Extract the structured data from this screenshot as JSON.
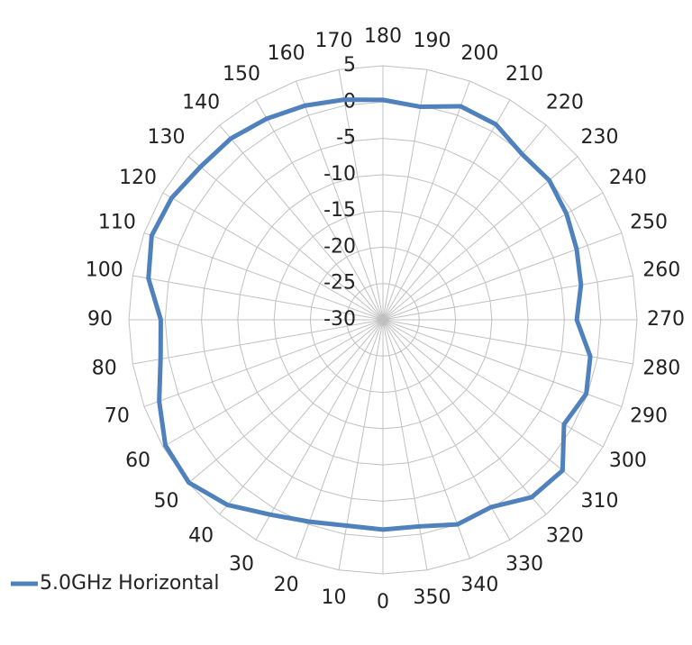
{
  "chart_data": {
    "type": "radar",
    "categories": [
      "0",
      "10",
      "20",
      "30",
      "40",
      "50",
      "60",
      "70",
      "80",
      "90",
      "100",
      "110",
      "120",
      "130",
      "140",
      "150",
      "160",
      "170",
      "180",
      "190",
      "200",
      "210",
      "220",
      "230",
      "240",
      "250",
      "260",
      "270",
      "280",
      "290",
      "300",
      "310",
      "320",
      "330",
      "340",
      "350"
    ],
    "series": [
      {
        "name": "5.0GHz Horizontal",
        "color": "#4f81bd",
        "values": [
          -1.1,
          -1.2,
          -0.4,
          1.0,
          3.3,
          4.9,
          4.6,
          2.8,
          1.1,
          0.6,
          2.8,
          3.9,
          3.6,
          2.8,
          2.6,
          2.0,
          1.4,
          0.8,
          0.3,
          -0.2,
          1.3,
          1.1,
          -0.2,
          -0.1,
          -0.8,
          -1.6,
          -2.3,
          -3.3,
          -1.0,
          -0.2,
          -1.2,
          2.3,
          1.9,
          -0.2,
          0.0,
          -1.1
        ]
      }
    ],
    "rlim": [
      -30,
      5
    ],
    "rticks": [
      -30,
      -25,
      -20,
      -15,
      -10,
      -5,
      0,
      5
    ],
    "grid": true,
    "legend": "bottom-left"
  }
}
